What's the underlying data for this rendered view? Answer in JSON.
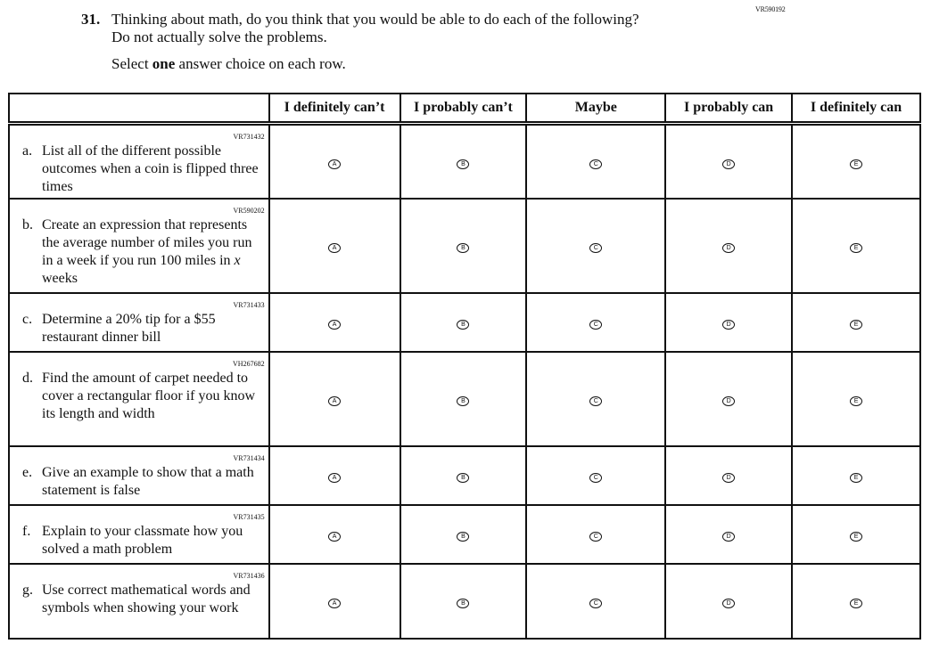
{
  "page_code": "VR590192",
  "question": {
    "number": "31.",
    "text_line1": "Thinking about math, do you think that you would be able to do each of the following?",
    "text_line2": "Do not actually solve the problems.",
    "instruction_before": "Select ",
    "instruction_bold": "one",
    "instruction_after": " answer choice on each row."
  },
  "columns": [
    "I definitely can’t",
    "I probably can’t",
    "Maybe",
    "I probably can",
    "I definitely can"
  ],
  "bubble_letters": [
    "A",
    "B",
    "C",
    "D",
    "E"
  ],
  "rows": [
    {
      "id": "VR731432",
      "letter": "a.",
      "text": "List all of the different possible outcomes when a coin is flipped three times"
    },
    {
      "id": "VR590202",
      "letter": "b.",
      "text": "Create an expression that represents the average number of miles you run in a week if you run 100 miles in ",
      "italic": "x",
      "text_after": " weeks"
    },
    {
      "id": "VR731433",
      "letter": "c.",
      "text": "Determine a 20% tip for a $55 restaurant dinner bill"
    },
    {
      "id": "VH267682",
      "letter": "d.",
      "text": "Find the amount of carpet needed to cover a rectangular floor if you know its length and width"
    },
    {
      "id": "VR731434",
      "letter": "e.",
      "text": "Give an example to show that a math statement is false"
    },
    {
      "id": "VR731435",
      "letter": "f.",
      "text": "Explain to your classmate how you solved a math problem"
    },
    {
      "id": "VR731436",
      "letter": "g.",
      "text": "Use correct mathematical words and symbols when showing your work"
    }
  ]
}
